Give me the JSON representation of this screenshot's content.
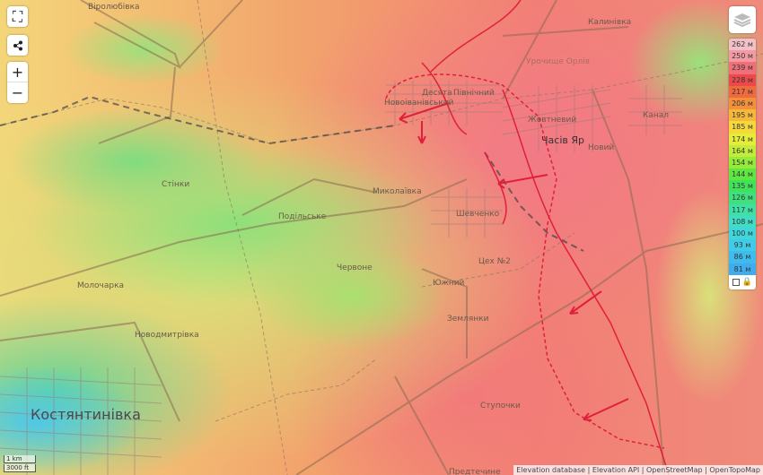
{
  "controls": {
    "fullscreen_icon": "fullscreen-icon",
    "share_icon": "share-icon",
    "zoom_in": "+",
    "zoom_out": "−"
  },
  "legend": {
    "items": [
      {
        "label": "262 м",
        "color": "#f4c0c8"
      },
      {
        "label": "250 м",
        "color": "#f49aa4"
      },
      {
        "label": "239 м",
        "color": "#f0707a"
      },
      {
        "label": "228 м",
        "color": "#ec4a4a"
      },
      {
        "label": "217 м",
        "color": "#f06a40"
      },
      {
        "label": "206 м",
        "color": "#f4903a"
      },
      {
        "label": "195 м",
        "color": "#f6b83a"
      },
      {
        "label": "185 м",
        "color": "#f6d83a"
      },
      {
        "label": "174 м",
        "color": "#e6ec3a"
      },
      {
        "label": "164 м",
        "color": "#c2ec3a"
      },
      {
        "label": "154 м",
        "color": "#96ea3a"
      },
      {
        "label": "144 м",
        "color": "#60e640"
      },
      {
        "label": "135 м",
        "color": "#40e25a"
      },
      {
        "label": "126 м",
        "color": "#40e07e"
      },
      {
        "label": "117 м",
        "color": "#40e0a4"
      },
      {
        "label": "108 м",
        "color": "#40dcc4"
      },
      {
        "label": "100 м",
        "color": "#40d6dc"
      },
      {
        "label": "93 м",
        "color": "#40cce8"
      },
      {
        "label": "86 м",
        "color": "#40bcec"
      },
      {
        "label": "81 м",
        "color": "#40acec"
      }
    ]
  },
  "places": {
    "virolubivka": "Віролюбівка",
    "kalynivka": "Калинівка",
    "urochyshche": "Урочище Орлів",
    "desiata": "Десята",
    "pivnichnyi": "Північний",
    "novoivanivskyi": "Новоіванівський",
    "zhovtnevyi": "Жовтневий",
    "chasiv_yar": "Часів Яр",
    "novyi": "Новий",
    "kanal": "Канал",
    "stinky": "Стінки",
    "mykolaivka": "Миколаївка",
    "podilske": "Подільське",
    "shevchenko": "Шевченко",
    "tsekh2": "Цех №2",
    "chervone": "Червоне",
    "molocharka": "Молочарка",
    "yuzhnyi": "Южний",
    "zemlianky": "Землянки",
    "novodmytrivka": "Новодмитрівка",
    "kostiantynivka": "Костянтинівка",
    "stupochky": "Ступочки",
    "predtechyne": "Предтечине"
  },
  "scale": {
    "metric": "1 km",
    "imperial": "3000 ft"
  },
  "attribution": [
    "Elevation database",
    "Elevation API",
    "OpenStreetMap",
    "OpenTopoMap"
  ]
}
